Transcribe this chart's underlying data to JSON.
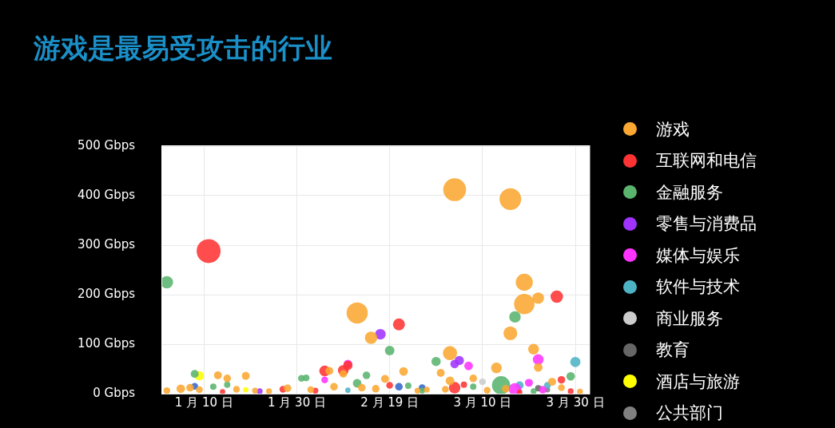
{
  "chart_data": {
    "type": "bubble",
    "title": "游戏是最易受攻击的行业",
    "xlim": [
      "--01-01",
      "--04-02"
    ],
    "xticks": [
      {
        "value": "--01-10",
        "label": "1 月 10 日"
      },
      {
        "value": "--01-30",
        "label": "1 月 30 日"
      },
      {
        "value": "--02-19",
        "label": "2 月 19 日"
      },
      {
        "value": "--03-10",
        "label": "3 月 10 日"
      },
      {
        "value": "--03-30",
        "label": "3 月 30 日"
      }
    ],
    "ylim": [
      0,
      500
    ],
    "yticks": [
      {
        "value": 0,
        "label": "0 Gbps"
      },
      {
        "value": 100,
        "label": "100 Gbps"
      },
      {
        "value": 200,
        "label": "200 Gbps"
      },
      {
        "value": 300,
        "label": "300 Gbps"
      },
      {
        "value": 400,
        "label": "400 Gbps"
      },
      {
        "value": 500,
        "label": "500 Gbps"
      }
    ],
    "grid": true,
    "legend": "right",
    "series": [
      {
        "name": "游戏",
        "color": "#fba731",
        "x": [
          "--03-04",
          "--03-16",
          "--03-19",
          "--03-19",
          "--03-22",
          "--02-12",
          "--02-15",
          "--03-16",
          "--03-21",
          "--03-03",
          "--03-13",
          "--03-22",
          "--02-22",
          "--03-01",
          "--03-08",
          "--03-03",
          "--01-13",
          "--01-15",
          "--01-19",
          "--02-06",
          "--02-09",
          "--02-18",
          "--03-25",
          "--01-02",
          "--01-05",
          "--01-07",
          "--01-09",
          "--01-17",
          "--01-24",
          "--01-28",
          "--02-02",
          "--02-07",
          "--02-13",
          "--02-16",
          "--02-25",
          "--03-02",
          "--03-11",
          "--03-15",
          "--03-27",
          "--03-31",
          "--01-21",
          "--02-27"
        ],
        "values": [
          412,
          393,
          225,
          181,
          193,
          163,
          113,
          122,
          90,
          82,
          52,
          53,
          45,
          42,
          31,
          26,
          37,
          31,
          36,
          46,
          40,
          30,
          24,
          6,
          10,
          12,
          8,
          9,
          5,
          11,
          8,
          14,
          12,
          10,
          6,
          9,
          7,
          10,
          12,
          4,
          6,
          8
        ],
        "sizes": [
          0.91,
          0.82,
          0.51,
          0.73,
          0.23,
          0.78,
          0.27,
          0.33,
          0.2,
          0.35,
          0.2,
          0.13,
          0.13,
          0.11,
          0.1,
          0.13,
          0.11,
          0.1,
          0.11,
          0.11,
          0.1,
          0.11,
          0.11,
          0.08,
          0.13,
          0.1,
          0.08,
          0.08,
          0.06,
          0.1,
          0.08,
          0.1,
          0.1,
          0.1,
          0.06,
          0.08,
          0.08,
          0.1,
          0.08,
          0.06,
          0.06,
          0.06
        ]
      },
      {
        "name": "互联网和电信",
        "color": "#ff3333",
        "x": [
          "--01-11",
          "--03-26",
          "--02-21",
          "--02-05",
          "--02-09",
          "--02-10",
          "--03-27",
          "--03-04",
          "--01-27",
          "--02-19",
          "--03-06",
          "--03-29",
          "--01-14",
          "--02-03",
          "--03-18"
        ],
        "values": [
          288,
          196,
          140,
          46,
          47,
          57,
          28,
          12,
          9,
          17,
          18,
          5,
          4,
          6,
          3
        ],
        "sizes": [
          1,
          0.27,
          0.25,
          0.2,
          0.2,
          0.15,
          0.1,
          0.23,
          0.08,
          0.08,
          0.07,
          0.06,
          0.05,
          0.06,
          0.05
        ]
      },
      {
        "name": "金融服务",
        "color": "#5ab46e",
        "x": [
          "--01-02",
          "--03-17",
          "--02-19",
          "--02-29",
          "--03-14",
          "--01-08",
          "--03-29",
          "--02-14",
          "--01-31",
          "--02-01",
          "--02-12",
          "--01-12",
          "--01-15",
          "--02-23",
          "--03-08",
          "--02-26",
          "--03-21"
        ],
        "values": [
          225,
          155,
          87,
          65,
          17,
          40,
          35,
          37,
          31,
          32,
          21,
          14,
          18,
          16,
          14,
          6,
          5
        ],
        "sizes": [
          0.27,
          0.23,
          0.16,
          0.15,
          0.58,
          0.11,
          0.13,
          0.1,
          0.08,
          0.08,
          0.13,
          0.07,
          0.07,
          0.07,
          0.07,
          0.06,
          0.06
        ]
      },
      {
        "name": "零售与消费品",
        "color": "#a033ff",
        "x": [
          "--02-17",
          "--03-05",
          "--03-04",
          "--01-22"
        ],
        "values": [
          120,
          67,
          60,
          5
        ],
        "sizes": [
          0.2,
          0.15,
          0.13,
          0.06
        ]
      },
      {
        "name": "媒体与娱乐",
        "color": "#ff33ff",
        "x": [
          "--03-22",
          "--03-07",
          "--02-10",
          "--02-05",
          "--03-17",
          "--03-20",
          "--03-23"
        ],
        "values": [
          69,
          56,
          60,
          28,
          9,
          22,
          8
        ],
        "sizes": [
          0.2,
          0.13,
          0.13,
          0.08,
          0.27,
          0.11,
          0.1
        ]
      },
      {
        "name": "软件与技术",
        "color": "#4db3c4",
        "x": [
          "--03-30",
          "--03-18",
          "--03-24",
          "--02-10"
        ],
        "values": [
          64,
          17,
          17,
          7
        ],
        "sizes": [
          0.18,
          0.11,
          0.08,
          0.05
        ]
      },
      {
        "name": "商业服务",
        "color": "#cccccc",
        "x": [
          "--03-10"
        ],
        "values": [
          24
        ],
        "sizes": [
          0.08
        ]
      },
      {
        "name": "教育",
        "color": "#666666",
        "x": [
          "--03-22"
        ],
        "values": [
          11
        ],
        "sizes": [
          0.07
        ]
      },
      {
        "name": "酒店与旅游",
        "color": "#ffff00",
        "x": [
          "--01-09",
          "--01-19"
        ],
        "values": [
          36,
          8
        ],
        "sizes": [
          0.15,
          0.05
        ]
      },
      {
        "name": "公共部门",
        "color": "#808080",
        "x": [
          "--03-24"
        ],
        "values": [
          8
        ],
        "sizes": [
          0.05
        ]
      },
      {
        "color": "#3366cc",
        "x": [
          "--01-08",
          "--02-21",
          "--02-26"
        ],
        "values": [
          15,
          14,
          12
        ],
        "sizes": [
          0.08,
          0.1,
          0.08
        ]
      }
    ]
  }
}
